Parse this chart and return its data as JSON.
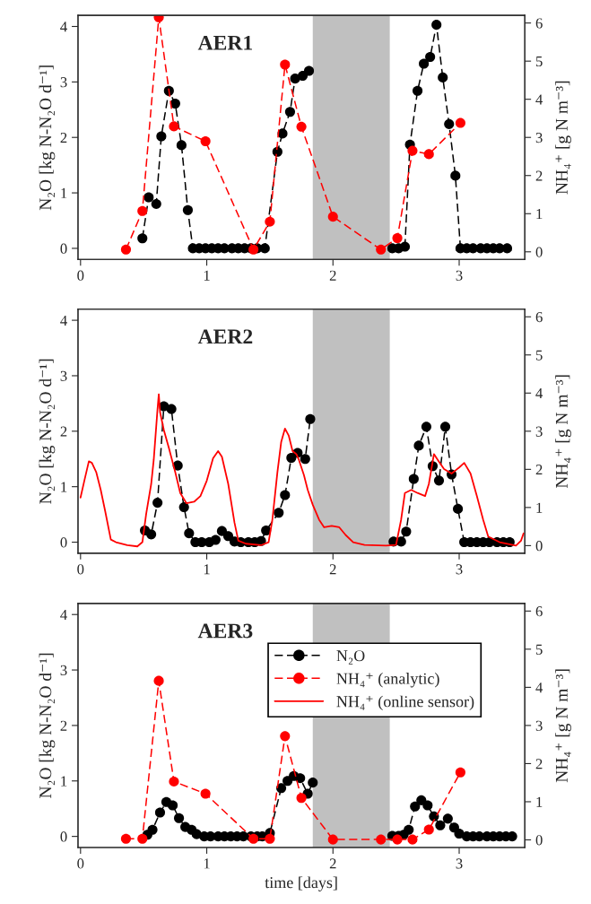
{
  "chart_data": [
    {
      "type": "line",
      "title": "AER1",
      "ylabel": "N₂O [kg N-N₂O d⁻¹]",
      "y2label": "NH₄⁺ [g N m⁻³]",
      "xlim": [
        -0.02,
        3.52
      ],
      "xticks": [
        0,
        1,
        2,
        3
      ],
      "ylim": [
        -0.2,
        4.2
      ],
      "yticks": [
        0,
        1,
        2,
        3,
        4
      ],
      "y2lim": [
        -0.2,
        6.2
      ],
      "y2ticks": [
        0,
        1,
        2,
        3,
        4,
        5,
        6
      ],
      "grid": false,
      "bands": [
        {
          "axis": "x",
          "from": 1.84,
          "to": 2.45,
          "color": "#c0c0c0"
        }
      ],
      "series": [
        {
          "color": "#000000",
          "marker": "circle",
          "line_style": "dashed",
          "axis": "y",
          "x": [
            0.49,
            0.54,
            0.6,
            0.64,
            0.7,
            0.75,
            0.8,
            0.85,
            0.89,
            0.94,
            0.99,
            1.04,
            1.09,
            1.14,
            1.2,
            1.25,
            1.3,
            1.35,
            1.4,
            1.46,
            1.56,
            1.6,
            1.66,
            1.7,
            1.76,
            1.81,
            2.1,
            2.47,
            2.52,
            2.57,
            2.61,
            2.67,
            2.72,
            2.77,
            2.82,
            2.87,
            2.92,
            2.97,
            3.01,
            3.06,
            3.11,
            3.17,
            3.22,
            3.27,
            3.32,
            3.38
          ],
          "values": [
            0.18,
            0.92,
            0.8,
            2.02,
            2.84,
            2.61,
            1.86,
            0.69,
            0,
            0,
            0,
            0,
            0,
            0,
            0,
            0,
            0,
            0,
            0,
            0,
            1.74,
            2.07,
            2.46,
            3.06,
            3.11,
            3.2,
            null,
            0,
            0,
            0.03,
            1.87,
            2.84,
            3.33,
            3.45,
            4.03,
            3.08,
            2.24,
            1.31,
            0,
            0,
            0,
            0,
            0,
            0,
            0,
            0
          ]
        },
        {
          "color": "#ff0000",
          "marker": "circle",
          "line_style": "dashed",
          "axis": "y2",
          "x": [
            0.36,
            0.49,
            0.62,
            0.74,
            0.99,
            1.37,
            1.5,
            1.62,
            1.75,
            2.0,
            2.38,
            2.51,
            2.63,
            2.76,
            3.01
          ],
          "values": [
            0.06,
            1.07,
            6.15,
            3.29,
            2.9,
            0.06,
            0.79,
            4.91,
            3.28,
            0.92,
            0.06,
            0.36,
            2.65,
            2.56,
            3.38
          ]
        }
      ]
    },
    {
      "type": "line",
      "title": "AER2",
      "ylabel": "N₂O [kg N-N₂O d⁻¹]",
      "y2label": "NH₄⁺ [g N m⁻³]",
      "xlim": [
        -0.02,
        3.52
      ],
      "xticks": [
        0,
        1,
        2,
        3
      ],
      "ylim": [
        -0.2,
        4.2
      ],
      "yticks": [
        0,
        1,
        2,
        3,
        4
      ],
      "y2lim": [
        -0.2,
        6.2
      ],
      "y2ticks": [
        0,
        1,
        2,
        3,
        4,
        5,
        6
      ],
      "grid": false,
      "bands": [
        {
          "axis": "x",
          "from": 1.84,
          "to": 2.45,
          "color": "#c0c0c0"
        }
      ],
      "series": [
        {
          "color": "#000000",
          "marker": "circle",
          "line_style": "dashed",
          "axis": "y",
          "x": [
            0.51,
            0.56,
            0.61,
            0.66,
            0.72,
            0.77,
            0.82,
            0.86,
            0.91,
            0.96,
            1.02,
            1.07,
            1.12,
            1.17,
            1.22,
            1.27,
            1.33,
            1.38,
            1.43,
            1.47,
            1.57,
            1.62,
            1.67,
            1.72,
            1.78,
            1.82,
            2.1,
            2.48,
            2.54,
            2.58,
            2.64,
            2.68,
            2.74,
            2.79,
            2.84,
            2.89,
            2.94,
            2.99,
            3.04,
            3.09,
            3.14,
            3.19,
            3.24,
            3.3,
            3.35,
            3.4
          ],
          "values": [
            0.21,
            0.14,
            0.71,
            2.45,
            2.4,
            1.38,
            0.63,
            0.16,
            0,
            0,
            0,
            0.04,
            0.2,
            0.11,
            0.01,
            0,
            0,
            0,
            0.02,
            0.21,
            0.53,
            0.85,
            1.52,
            1.61,
            1.5,
            2.22,
            null,
            0.01,
            0.01,
            0.19,
            1.14,
            1.74,
            2.08,
            1.37,
            1.11,
            2.08,
            1.22,
            0.6,
            0,
            0,
            0,
            0,
            0,
            0,
            0,
            0
          ]
        },
        {
          "name": "NH₄⁺ (online sensor)",
          "color": "#ff0000",
          "marker": "none",
          "line_style": "solid",
          "axis": "y2",
          "x": [
            0,
            0.03,
            0.066,
            0.09,
            0.124,
            0.16,
            0.195,
            0.24,
            0.28,
            0.37,
            0.45,
            0.49,
            0.52,
            0.56,
            0.58,
            0.61,
            0.62,
            0.63,
            0.66,
            0.7,
            0.75,
            0.79,
            0.84,
            0.9,
            0.95,
            1.0,
            1.05,
            1.09,
            1.12,
            1.17,
            1.22,
            1.25,
            1.31,
            1.43,
            1.49,
            1.52,
            1.56,
            1.59,
            1.62,
            1.65,
            1.68,
            1.71,
            1.73,
            1.77,
            1.8,
            1.84,
            1.89,
            1.93,
            1.99,
            2.05,
            2.1,
            2.16,
            2.25,
            2.42,
            2.5,
            2.54,
            2.57,
            2.62,
            2.67,
            2.73,
            2.76,
            2.8,
            2.83,
            2.88,
            2.94,
            3.0,
            3.04,
            3.09,
            3.14,
            3.19,
            3.23,
            3.32,
            3.45,
            3.49,
            3.51
          ],
          "values": [
            1.26,
            1.7,
            2.21,
            2.17,
            1.93,
            1.46,
            0.91,
            0.16,
            0.09,
            0.01,
            -0.02,
            0.09,
            0.83,
            1.62,
            2.25,
            3.58,
            3.97,
            3.5,
            3.03,
            2.56,
            1.93,
            1.38,
            1.11,
            1.15,
            1.3,
            1.7,
            2.29,
            2.48,
            2.33,
            1.62,
            0.6,
            0.13,
            0.05,
            0.01,
            0.09,
            0.68,
            1.93,
            2.72,
            3.07,
            2.88,
            2.48,
            2.4,
            2.25,
            1.85,
            1.46,
            1.07,
            0.68,
            0.48,
            0.52,
            0.48,
            0.28,
            0.09,
            0.02,
            0,
            0.02,
            0.68,
            1.38,
            1.46,
            1.38,
            1.3,
            1.62,
            2.4,
            2.25,
            2.01,
            1.89,
            2.05,
            2.17,
            1.89,
            1.3,
            0.68,
            0.24,
            0.09,
            0,
            0.13,
            0.32
          ]
        }
      ]
    },
    {
      "type": "line",
      "title": "AER3",
      "xlabel": "time [days]",
      "ylabel": "N₂O [kg N-N₂O d⁻¹]",
      "y2label": "NH₄⁺ [g N m⁻³]",
      "xlim": [
        -0.02,
        3.52
      ],
      "xticks": [
        0,
        1,
        2,
        3
      ],
      "ylim": [
        -0.2,
        4.2
      ],
      "yticks": [
        0,
        1,
        2,
        3,
        4
      ],
      "y2lim": [
        -0.2,
        6.2
      ],
      "y2ticks": [
        0,
        1,
        2,
        3,
        4,
        5,
        6
      ],
      "grid": false,
      "legend": "top right",
      "bands": [
        {
          "axis": "x",
          "from": 1.84,
          "to": 2.45,
          "color": "#c0c0c0"
        }
      ],
      "series": [
        {
          "name": "N₂O",
          "color": "#000000",
          "marker": "circle",
          "line_style": "dashed",
          "axis": "y",
          "x": [
            0.53,
            0.57,
            0.63,
            0.68,
            0.73,
            0.78,
            0.83,
            0.88,
            0.92,
            0.98,
            1.03,
            1.09,
            1.14,
            1.19,
            1.24,
            1.29,
            1.35,
            1.4,
            1.44,
            1.5,
            1.59,
            1.64,
            1.69,
            1.74,
            1.8,
            1.84,
            2.1,
            2.47,
            2.52,
            2.56,
            2.6,
            2.65,
            2.7,
            2.75,
            2.8,
            2.85,
            2.91,
            2.96,
            3.0,
            3.06,
            3.11,
            3.16,
            3.22,
            3.27,
            3.32,
            3.37,
            3.42
          ],
          "values": [
            0.03,
            0.12,
            0.43,
            0.62,
            0.56,
            0.33,
            0.17,
            0.12,
            0.04,
            0,
            0,
            0,
            0,
            0,
            0,
            0,
            0,
            0,
            0,
            0.06,
            0.87,
            1.0,
            1.09,
            1.05,
            0.77,
            0.97,
            null,
            0.01,
            0.01,
            0.03,
            0.12,
            0.54,
            0.65,
            0.56,
            0.36,
            0.2,
            0.32,
            0.16,
            0.05,
            0,
            0,
            0,
            0,
            0,
            0,
            0,
            0
          ]
        },
        {
          "name": "NH₄⁺ (analytic)",
          "color": "#ff0000",
          "marker": "circle",
          "line_style": "dashed",
          "axis": "y2",
          "x": [
            0.36,
            0.49,
            0.62,
            0.74,
            0.99,
            1.37,
            1.5,
            1.62,
            1.75,
            2.0,
            2.38,
            2.51,
            2.63,
            2.76,
            3.01
          ],
          "values": [
            0.03,
            0.03,
            4.17,
            1.53,
            1.21,
            0.03,
            0.03,
            2.72,
            1.1,
            0.01,
            0.01,
            0.01,
            0.01,
            0.27,
            1.77
          ]
        }
      ]
    }
  ]
}
